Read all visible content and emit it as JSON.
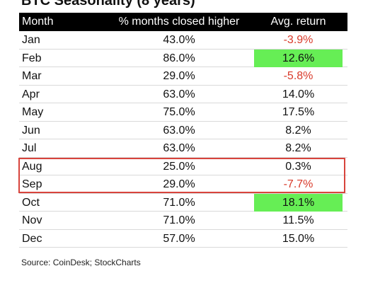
{
  "title": "BTC Seasonality (8 years)",
  "source": "Source: CoinDesk; StockCharts",
  "colors": {
    "header_bg": "#000000",
    "header_text": "#ffffff",
    "negative": "#d93a2a",
    "highlight": "#66ee55",
    "outline": "#d8443c"
  },
  "chart_data": {
    "type": "table",
    "title": "BTC Seasonality (8 years)",
    "columns": [
      "Month",
      "% months closed higher",
      "Avg. return"
    ],
    "rows": [
      {
        "month": "Jan",
        "pct_higher": "43.0%",
        "avg_return": "-3.9%",
        "negative": true,
        "highlight": false
      },
      {
        "month": "Feb",
        "pct_higher": "86.0%",
        "avg_return": "12.6%",
        "negative": false,
        "highlight": true
      },
      {
        "month": "Mar",
        "pct_higher": "29.0%",
        "avg_return": "-5.8%",
        "negative": true,
        "highlight": false
      },
      {
        "month": "Apr",
        "pct_higher": "63.0%",
        "avg_return": "14.0%",
        "negative": false,
        "highlight": false
      },
      {
        "month": "May",
        "pct_higher": "75.0%",
        "avg_return": "17.5%",
        "negative": false,
        "highlight": false
      },
      {
        "month": "Jun",
        "pct_higher": "63.0%",
        "avg_return": "8.2%",
        "negative": false,
        "highlight": false
      },
      {
        "month": "Jul",
        "pct_higher": "63.0%",
        "avg_return": "8.2%",
        "negative": false,
        "highlight": false
      },
      {
        "month": "Aug",
        "pct_higher": "25.0%",
        "avg_return": "0.3%",
        "negative": false,
        "highlight": false,
        "outlined": true
      },
      {
        "month": "Sep",
        "pct_higher": "29.0%",
        "avg_return": "-7.7%",
        "negative": true,
        "highlight": false,
        "outlined": true
      },
      {
        "month": "Oct",
        "pct_higher": "71.0%",
        "avg_return": "18.1%",
        "negative": false,
        "highlight": true
      },
      {
        "month": "Nov",
        "pct_higher": "71.0%",
        "avg_return": "11.5%",
        "negative": false,
        "highlight": false
      },
      {
        "month": "Dec",
        "pct_higher": "57.0%",
        "avg_return": "15.0%",
        "negative": false,
        "highlight": false
      }
    ]
  }
}
